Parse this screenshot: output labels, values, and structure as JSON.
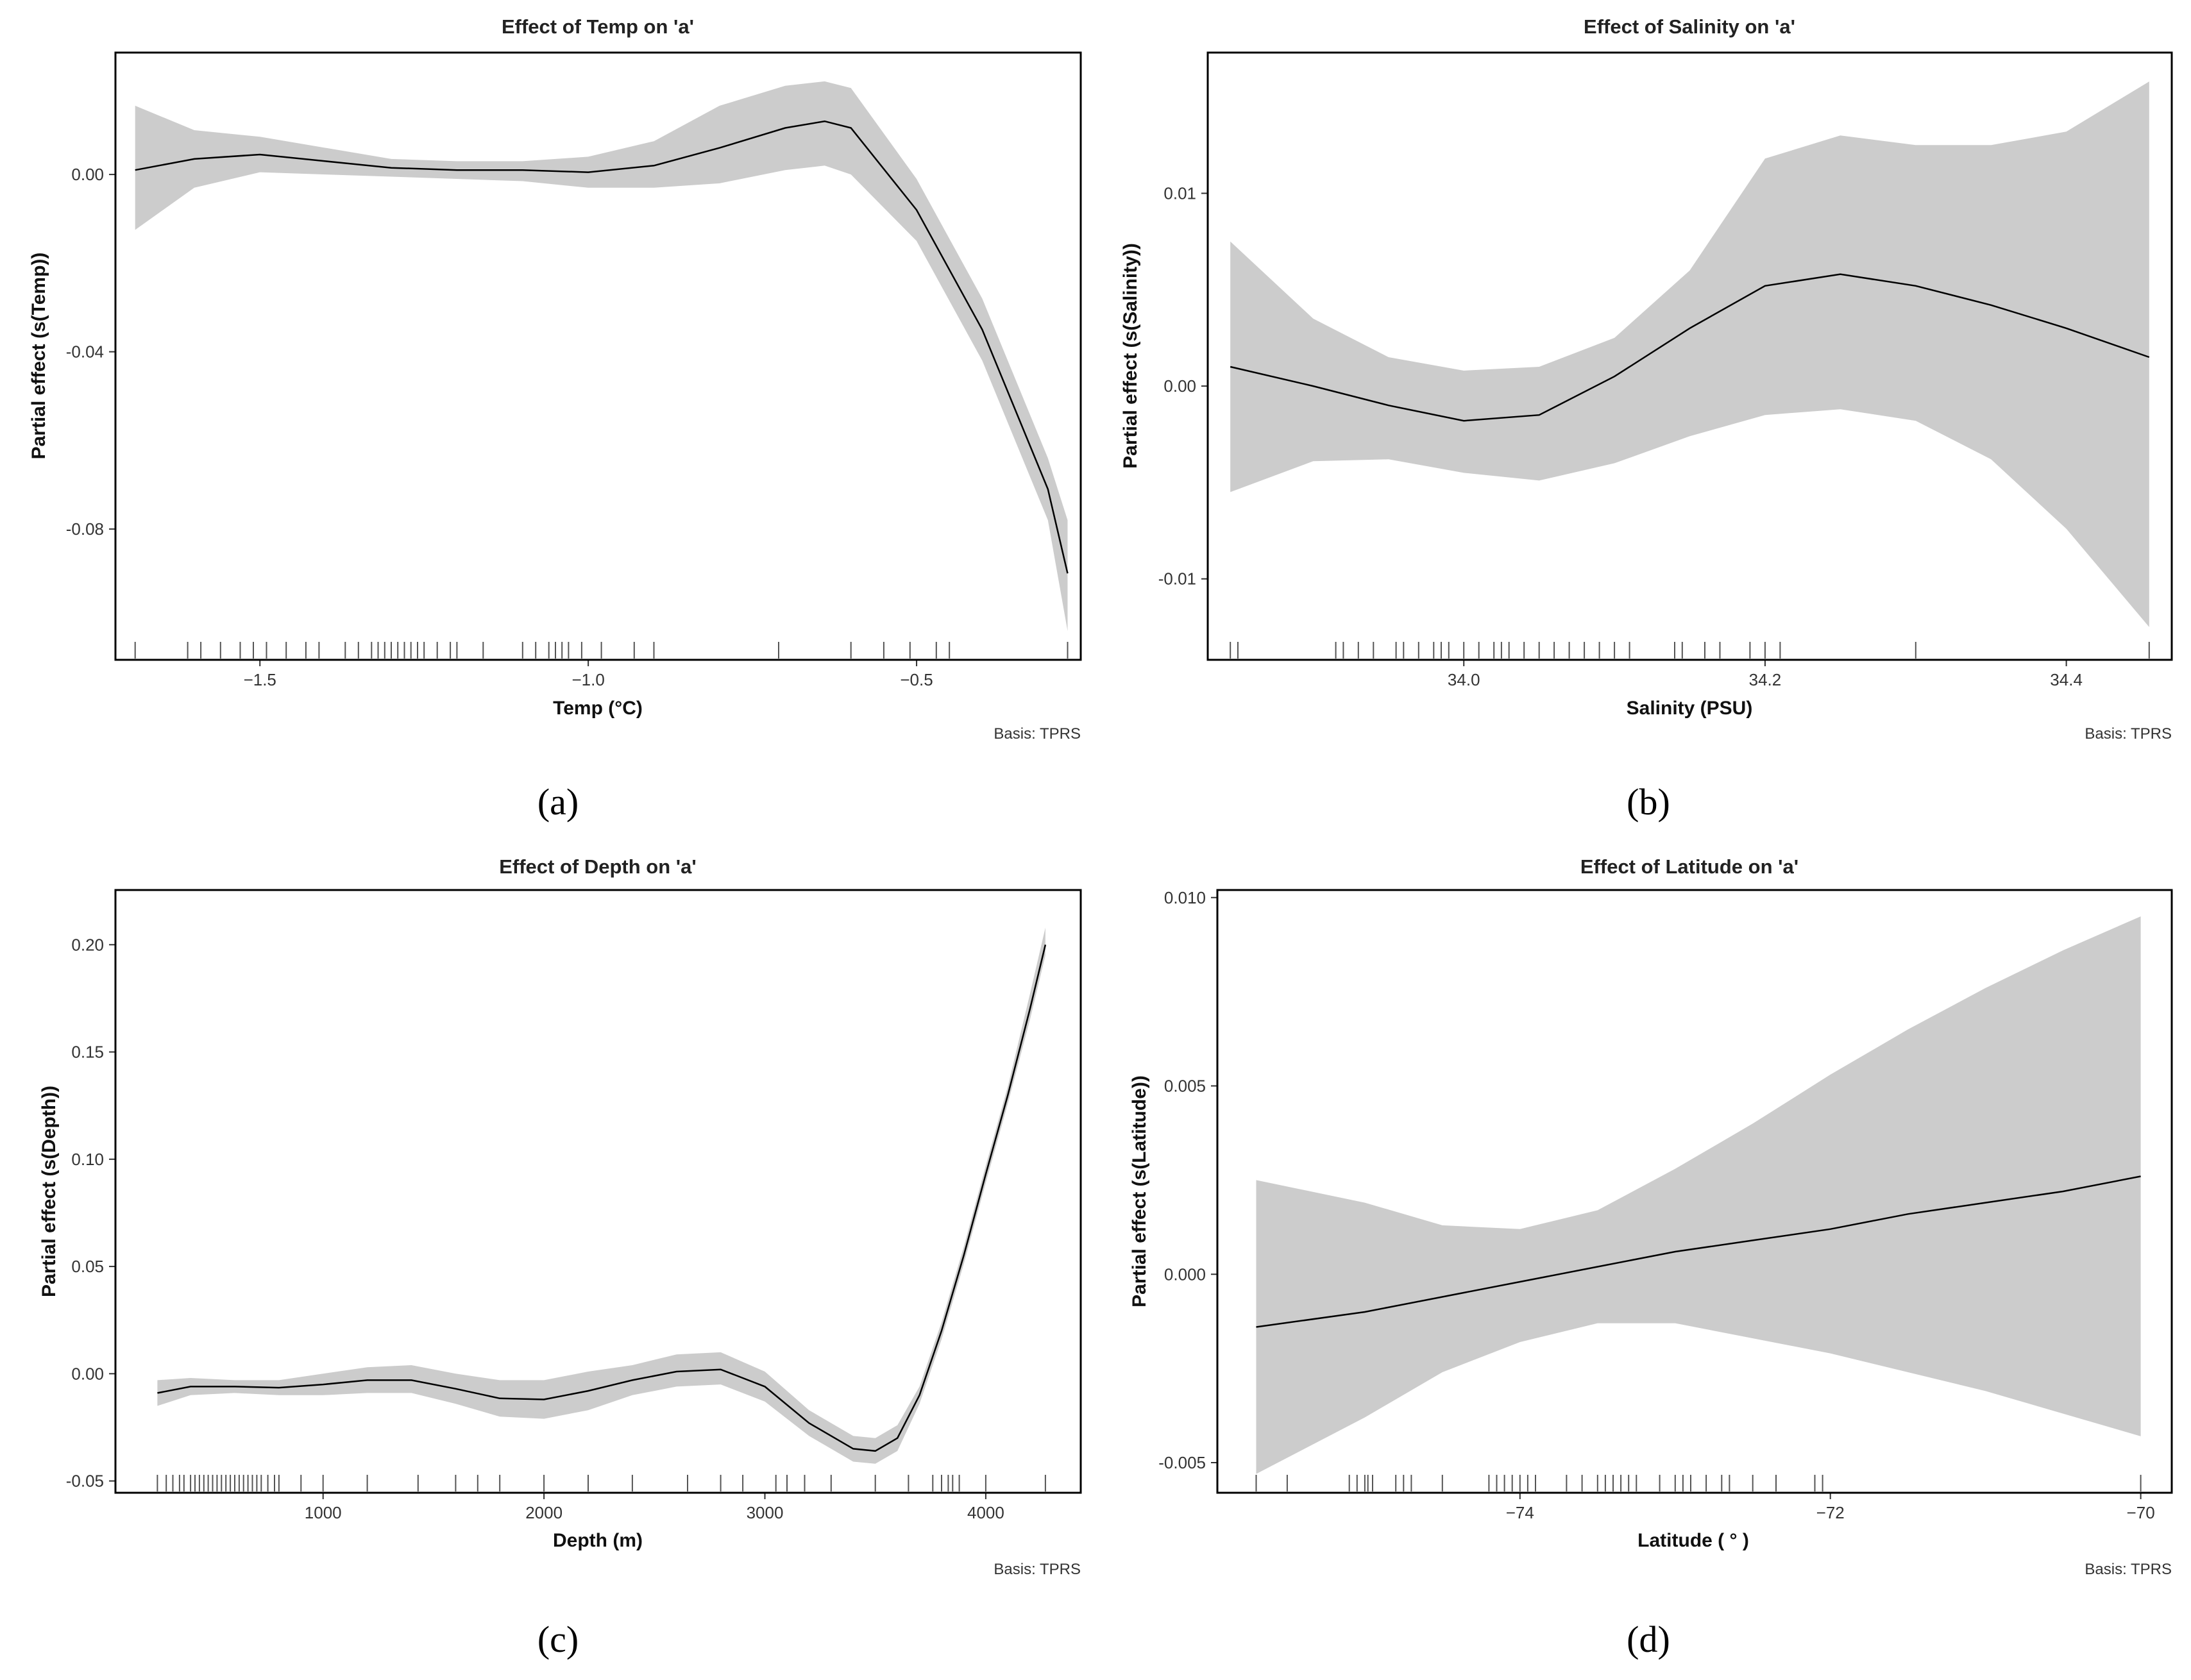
{
  "figure": {
    "panels": [
      {
        "label_text": "(a)",
        "caption": "Basis: TPRS"
      },
      {
        "label_text": "(b)",
        "caption": "Basis: TPRS"
      },
      {
        "label_text": "(c)",
        "caption": "Basis: TPRS"
      },
      {
        "label_text": "(d)",
        "caption": "Basis: TPRS"
      }
    ]
  },
  "chart_data": [
    {
      "type": "line",
      "title": "Effect of Temp on 'a'",
      "xlabel": "Temp (°C)",
      "ylabel": "Partial effect (s(Temp))",
      "xlim": [
        -1.72,
        -0.25
      ],
      "ylim": [
        -0.1095,
        0.0275
      ],
      "xticks": [
        -1.5,
        -1.0,
        -0.5
      ],
      "xtick_labels": [
        "−1.5",
        "−1.0",
        "−0.5"
      ],
      "yticks": [
        0.0,
        -0.04,
        -0.08
      ],
      "ytick_labels": [
        "0.00",
        "-0.04",
        "-0.08"
      ],
      "series": [
        {
          "x": [
            -1.69,
            -1.6,
            -1.5,
            -1.4,
            -1.3,
            -1.2,
            -1.1,
            -1.0,
            -0.9,
            -0.8,
            -0.7,
            -0.64,
            -0.6,
            -0.5,
            -0.4,
            -0.3,
            -0.27
          ],
          "y": [
            0.001,
            0.0035,
            0.0045,
            0.003,
            0.0015,
            0.001,
            0.001,
            0.0005,
            0.002,
            0.006,
            0.0105,
            0.012,
            0.0105,
            -0.008,
            -0.035,
            -0.071,
            -0.09
          ],
          "lower": [
            -0.0125,
            -0.003,
            0.0005,
            0.0,
            -0.0005,
            -0.001,
            -0.0015,
            -0.003,
            -0.003,
            -0.002,
            0.001,
            0.002,
            0.0,
            -0.015,
            -0.042,
            -0.078,
            -0.103
          ],
          "upper": [
            0.0155,
            0.01,
            0.0085,
            0.006,
            0.0035,
            0.003,
            0.003,
            0.004,
            0.0075,
            0.0155,
            0.02,
            0.021,
            0.0195,
            -0.001,
            -0.028,
            -0.064,
            -0.078
          ]
        }
      ],
      "rug": [
        -1.69,
        -1.61,
        -1.59,
        -1.56,
        -1.53,
        -1.51,
        -1.49,
        -1.46,
        -1.43,
        -1.41,
        -1.37,
        -1.35,
        -1.33,
        -1.32,
        -1.31,
        -1.3,
        -1.29,
        -1.28,
        -1.27,
        -1.26,
        -1.25,
        -1.23,
        -1.21,
        -1.2,
        -1.16,
        -1.1,
        -1.08,
        -1.06,
        -1.05,
        -1.04,
        -1.03,
        -1.01,
        -0.98,
        -0.93,
        -0.9,
        -0.71,
        -0.6,
        -0.55,
        -0.51,
        -0.47,
        -0.45,
        -0.27
      ],
      "grid": false
    },
    {
      "type": "line",
      "title": "Effect of Salinity on 'a'",
      "xlabel": "Salinity (PSU)",
      "ylabel": "Partial effect (s(Salinity))",
      "xlim": [
        33.83,
        34.47
      ],
      "ylim": [
        -0.0142,
        0.0173
      ],
      "xticks": [
        34.0,
        34.2,
        34.4
      ],
      "xtick_labels": [
        "34.0",
        "34.2",
        "34.4"
      ],
      "yticks": [
        0.01,
        0.0,
        -0.01
      ],
      "ytick_labels": [
        "0.01",
        "0.00",
        "-0.01"
      ],
      "series": [
        {
          "x": [
            33.845,
            33.9,
            33.95,
            34.0,
            34.05,
            34.1,
            34.15,
            34.2,
            34.25,
            34.3,
            34.35,
            34.4,
            34.455
          ],
          "y": [
            0.001,
            0.0,
            -0.001,
            -0.0018,
            -0.0015,
            0.0005,
            0.003,
            0.0052,
            0.0058,
            0.0052,
            0.0042,
            0.003,
            0.0015
          ],
          "lower": [
            -0.0055,
            -0.0039,
            -0.0038,
            -0.0045,
            -0.0049,
            -0.004,
            -0.0026,
            -0.0015,
            -0.0012,
            -0.0018,
            -0.0038,
            -0.0074,
            -0.0125
          ],
          "upper": [
            0.0075,
            0.0035,
            0.0015,
            0.0008,
            0.001,
            0.0025,
            0.006,
            0.0118,
            0.013,
            0.0125,
            0.0125,
            0.0132,
            0.0158
          ]
        }
      ],
      "rug": [
        33.845,
        33.85,
        33.915,
        33.92,
        33.93,
        33.94,
        33.955,
        33.96,
        33.97,
        33.98,
        33.985,
        33.99,
        34.0,
        34.01,
        34.02,
        34.025,
        34.03,
        34.04,
        34.05,
        34.06,
        34.07,
        34.08,
        34.09,
        34.1,
        34.11,
        34.14,
        34.145,
        34.16,
        34.17,
        34.19,
        34.2,
        34.21,
        34.3,
        34.455
      ],
      "grid": false
    },
    {
      "type": "line",
      "title": "Effect of Depth on 'a'",
      "xlabel": "Depth (m)",
      "ylabel": "Partial effect (s(Depth))",
      "xlim": [
        60,
        4430
      ],
      "ylim": [
        -0.0555,
        0.2255
      ],
      "xticks": [
        1000,
        2000,
        3000,
        4000
      ],
      "xtick_labels": [
        "1000",
        "2000",
        "3000",
        "4000"
      ],
      "yticks": [
        0.2,
        0.15,
        0.1,
        0.05,
        0.0,
        -0.05
      ],
      "ytick_labels": [
        "0.20",
        "0.15",
        "0.10",
        "0.05",
        "0.00",
        "-0.05"
      ],
      "series": [
        {
          "x": [
            250,
            400,
            600,
            800,
            1000,
            1200,
            1400,
            1600,
            1800,
            2000,
            2200,
            2400,
            2600,
            2800,
            3000,
            3200,
            3400,
            3500,
            3600,
            3700,
            3800,
            3900,
            4000,
            4100,
            4200,
            4270
          ],
          "y": [
            -0.009,
            -0.006,
            -0.006,
            -0.0065,
            -0.005,
            -0.003,
            -0.003,
            -0.007,
            -0.0115,
            -0.012,
            -0.008,
            -0.003,
            0.001,
            0.002,
            -0.006,
            -0.023,
            -0.035,
            -0.036,
            -0.03,
            -0.01,
            0.02,
            0.055,
            0.093,
            0.13,
            0.17,
            0.2
          ],
          "lower": [
            -0.015,
            -0.01,
            -0.009,
            -0.01,
            -0.01,
            -0.009,
            -0.009,
            -0.014,
            -0.02,
            -0.021,
            -0.017,
            -0.01,
            -0.006,
            -0.005,
            -0.013,
            -0.029,
            -0.041,
            -0.042,
            -0.036,
            -0.014,
            0.016,
            0.051,
            0.089,
            0.126,
            0.165,
            0.195
          ],
          "upper": [
            -0.003,
            -0.002,
            -0.003,
            -0.003,
            0.0,
            0.003,
            0.004,
            0.0,
            -0.003,
            -0.003,
            0.001,
            0.004,
            0.009,
            0.01,
            0.001,
            -0.017,
            -0.029,
            -0.03,
            -0.024,
            -0.006,
            0.024,
            0.059,
            0.097,
            0.134,
            0.177,
            0.208
          ]
        }
      ],
      "rug": [
        250,
        290,
        320,
        350,
        370,
        400,
        420,
        440,
        460,
        480,
        500,
        520,
        540,
        560,
        580,
        600,
        620,
        640,
        660,
        680,
        700,
        720,
        750,
        780,
        800,
        900,
        1000,
        1200,
        1430,
        1600,
        1700,
        1800,
        2000,
        2200,
        2400,
        2650,
        2800,
        2900,
        3050,
        3100,
        3180,
        3300,
        3500,
        3650,
        3760,
        3800,
        3830,
        3850,
        3880,
        4000,
        4270
      ],
      "grid": false
    },
    {
      "type": "line",
      "title": "Effect of Latitude on 'a'",
      "xlabel": "Latitude ( ° )",
      "ylabel": "Partial effect (s(Latitude))",
      "xlim": [
        -75.95,
        -69.8
      ],
      "ylim": [
        -0.0058,
        0.0102
      ],
      "xticks": [
        -74,
        -72,
        -70
      ],
      "xtick_labels": [
        "−74",
        "−72",
        "−70"
      ],
      "yticks": [
        0.01,
        0.005,
        0.0,
        -0.005
      ],
      "ytick_labels": [
        "0.010",
        "0.005",
        "0.000",
        "-0.005"
      ],
      "series": [
        {
          "x": [
            -75.7,
            -75.0,
            -74.5,
            -74.0,
            -73.5,
            -73.0,
            -72.5,
            -72.0,
            -71.5,
            -71.0,
            -70.5,
            -70.0
          ],
          "y": [
            -0.0014,
            -0.001,
            -0.0006,
            -0.0002,
            0.0002,
            0.0006,
            0.0009,
            0.0012,
            0.0016,
            0.0019,
            0.0022,
            0.0026
          ],
          "lower": [
            -0.0053,
            -0.0038,
            -0.0026,
            -0.0018,
            -0.0013,
            -0.0013,
            -0.0017,
            -0.0021,
            -0.0026,
            -0.0031,
            -0.0037,
            -0.0043
          ],
          "upper": [
            0.0025,
            0.0019,
            0.0013,
            0.0012,
            0.0017,
            0.0028,
            0.004,
            0.0053,
            0.0065,
            0.0076,
            0.0086,
            0.0095
          ]
        }
      ],
      "rug": [
        -75.7,
        -75.5,
        -75.1,
        -75.05,
        -75.0,
        -74.98,
        -74.95,
        -74.8,
        -74.75,
        -74.7,
        -74.5,
        -74.2,
        -74.15,
        -74.1,
        -74.05,
        -74.0,
        -73.95,
        -73.9,
        -73.7,
        -73.6,
        -73.5,
        -73.45,
        -73.4,
        -73.35,
        -73.3,
        -73.25,
        -73.1,
        -73.0,
        -72.95,
        -72.9,
        -72.8,
        -72.7,
        -72.65,
        -72.5,
        -72.35,
        -72.1,
        -72.05,
        -70.0
      ],
      "grid": false
    }
  ]
}
